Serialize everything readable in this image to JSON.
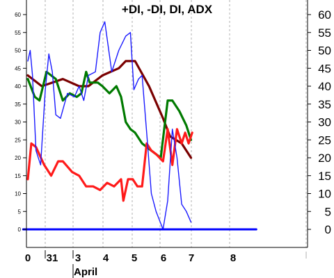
{
  "chart_data": {
    "type": "line",
    "title": "+DI, -DI, DI, ADX",
    "ylim": [
      -6,
      64
    ],
    "y_ticks_left": [
      "0",
      "5",
      "10",
      "15",
      "20",
      "25",
      "30",
      "35",
      "40",
      "45",
      "50",
      "55",
      "60"
    ],
    "y_ticks_right": [
      "0",
      "5",
      "10",
      "15",
      "20",
      "25",
      "30",
      "35",
      "40",
      "45",
      "50",
      "55",
      "60"
    ],
    "x_ticks": [
      "0",
      "31",
      "3",
      "4",
      "5",
      "6",
      "7",
      "8"
    ],
    "month_label": "April",
    "grid": true,
    "colors": {
      "plus_di": "#ff1a1a",
      "minus_di": "#007a00",
      "di": "#1a1aff",
      "adx": "#7a0000",
      "zero_line": "#0000ff",
      "grid": "#b0b0b0"
    },
    "series": [
      {
        "key": "adx",
        "x": [
          0,
          0.6,
          1.5,
          2.2,
          2.6,
          3.2,
          3.9,
          4.2,
          4.6,
          5.2,
          5.8,
          6.1,
          6.6,
          7.0
        ],
        "values": [
          43,
          40,
          42,
          40,
          40,
          43,
          45,
          47,
          47,
          40,
          31,
          26,
          24,
          20
        ]
      },
      {
        "key": "minus_di",
        "x": [
          0,
          0.3,
          0.5,
          0.8,
          1.0,
          1.2,
          1.5,
          1.8,
          2.1,
          2.3,
          2.5,
          2.65,
          2.8,
          3.0,
          3.2,
          3.5,
          3.8,
          4.0,
          4.2,
          4.4,
          4.6,
          4.9,
          5.3,
          5.7,
          6.0,
          6.2,
          6.5,
          6.8,
          7.0
        ],
        "values": [
          42,
          37,
          36,
          44,
          43,
          42,
          36,
          38,
          37,
          38,
          44,
          41,
          41,
          41,
          40,
          38,
          40,
          37,
          30,
          28,
          27,
          24,
          22,
          20,
          36,
          36,
          33,
          29,
          25
        ]
      },
      {
        "key": "plus_di",
        "x": [
          0,
          0.15,
          0.35,
          0.7,
          1.0,
          1.3,
          1.5,
          1.9,
          2.2,
          2.5,
          2.8,
          3.1,
          3.4,
          3.7,
          4.0,
          4.1,
          4.3,
          4.5,
          4.7,
          4.9,
          5.1,
          5.3,
          5.5,
          5.8,
          6.0,
          6.2,
          6.4,
          6.6,
          6.75,
          6.9,
          7.05
        ],
        "values": [
          14,
          24,
          23,
          18,
          15,
          19,
          19,
          16,
          15,
          12,
          12,
          11,
          13,
          12,
          14,
          8,
          14,
          14,
          12,
          12,
          24,
          22,
          21,
          19,
          28,
          18,
          28,
          24,
          27,
          24,
          27
        ]
      },
      {
        "key": "di",
        "x": [
          0,
          0.1,
          0.2,
          0.35,
          0.55,
          0.75,
          0.9,
          1.05,
          1.2,
          1.4,
          1.7,
          2.0,
          2.2,
          2.4,
          2.6,
          2.9,
          3.1,
          3.3,
          3.6,
          3.9,
          4.2,
          4.4,
          4.55,
          4.75,
          4.9,
          5.1,
          5.3,
          5.5,
          5.8,
          6.0,
          6.2,
          6.4,
          6.6,
          6.8,
          7.0
        ],
        "values": [
          47,
          50,
          43,
          22,
          18,
          39,
          49,
          44,
          32,
          31,
          38,
          37,
          40,
          36,
          43,
          44,
          55,
          58,
          44,
          50,
          54,
          55,
          39,
          42,
          43,
          27,
          10,
          5,
          0,
          8,
          28,
          20,
          7,
          5,
          2
        ]
      },
      {
        "key": "zero",
        "x": [
          -0.2,
          9.8
        ],
        "values": [
          0,
          0
        ]
      }
    ]
  }
}
